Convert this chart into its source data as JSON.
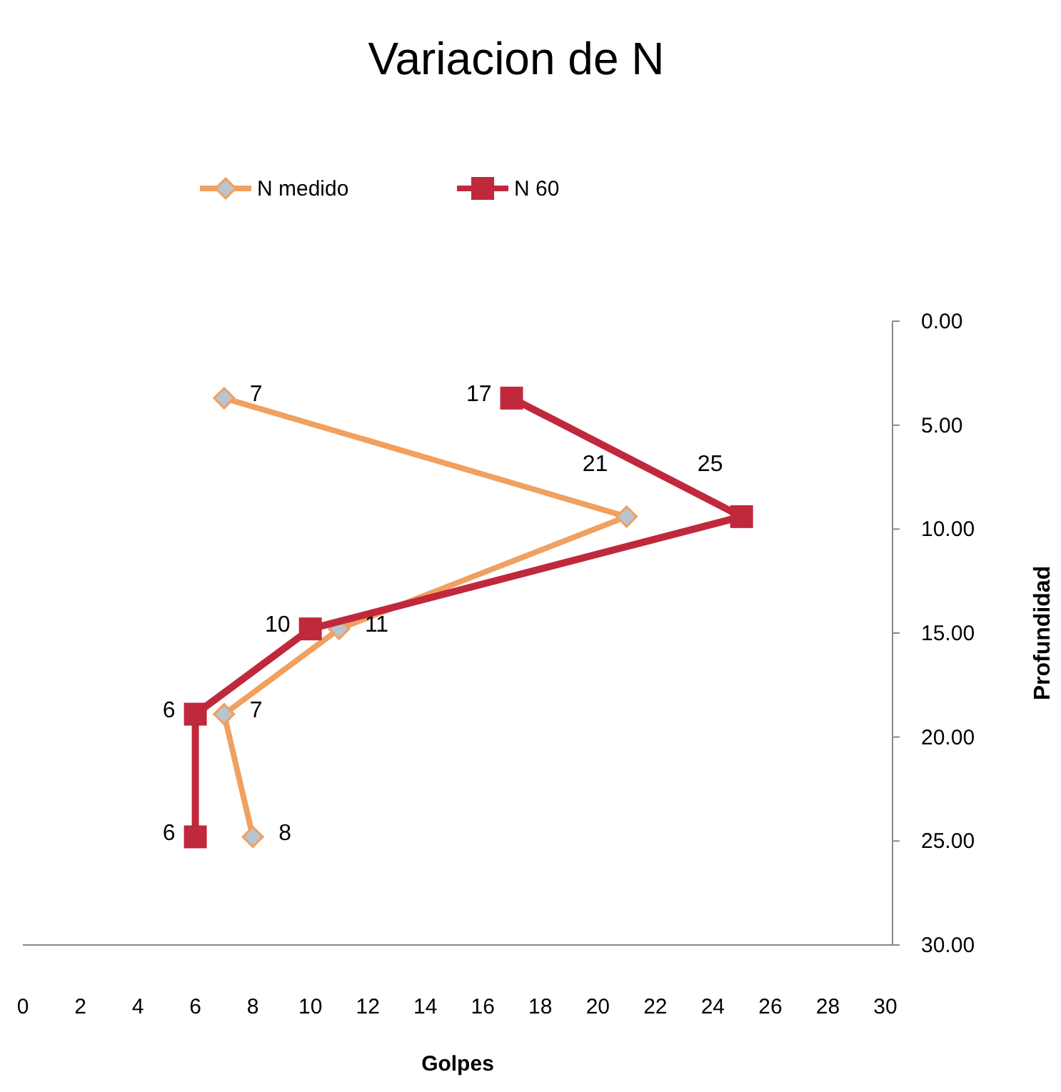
{
  "chart_data": {
    "type": "line",
    "orientation": "horizontal",
    "title": "Variacion de N",
    "xlabel": "Golpes",
    "ylabel": "Profundidad",
    "xlim": [
      0,
      30
    ],
    "xticks": [
      0,
      2,
      4,
      6,
      8,
      10,
      12,
      14,
      16,
      18,
      20,
      22,
      24,
      26,
      28,
      30
    ],
    "ylim": [
      30,
      0
    ],
    "yticks": [
      {
        "value": 0,
        "label": "0.00"
      },
      {
        "value": 5,
        "label": "5.00"
      },
      {
        "value": 10,
        "label": "10.00"
      },
      {
        "value": 15,
        "label": "15.00"
      },
      {
        "value": 20,
        "label": "20.00"
      },
      {
        "value": 25,
        "label": "25.00"
      },
      {
        "value": 30,
        "label": "30.00"
      }
    ],
    "legend": "top left",
    "data_labels": true,
    "series": [
      {
        "name": "N medido",
        "color": "#f0a060",
        "marker": "diamond",
        "x": [
          3.7,
          9.4,
          14.8,
          18.9,
          24.8
        ],
        "values": [
          7,
          21,
          11,
          7,
          8
        ]
      },
      {
        "name": "N 60",
        "color": "#c0283c",
        "marker": "square",
        "x": [
          3.7,
          9.4,
          14.8,
          18.9,
          24.8
        ],
        "values": [
          17,
          25,
          10,
          6,
          6
        ]
      }
    ]
  }
}
